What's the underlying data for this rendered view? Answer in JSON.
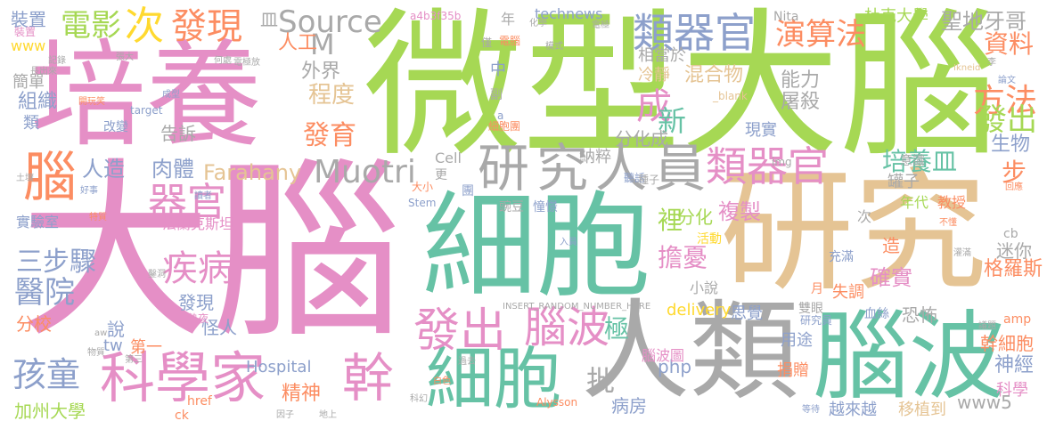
{
  "palette": {
    "pink": "#e58fc6",
    "green": "#a6d854",
    "teal": "#66c2a5",
    "gray": "#a9a9a9",
    "tan": "#e5c494",
    "orange": "#fc8d62",
    "blue": "#8da0cb",
    "yellow": "#ffd92f"
  },
  "words": [
    {
      "text": "大腦",
      "color": "#e58fc6"
    },
    {
      "text": "微型大腦",
      "color": "#a6d854"
    },
    {
      "text": "培養",
      "color": "#e58fc6"
    },
    {
      "text": "研究",
      "color": "#e5c494"
    },
    {
      "text": "細胞",
      "color": "#66c2a5"
    },
    {
      "text": "人類",
      "color": "#a9a9a9"
    },
    {
      "text": "腦波",
      "color": "#66c2a5"
    },
    {
      "text": "研究人員",
      "color": "#a9a9a9"
    },
    {
      "text": "科學家",
      "color": "#e58fc6"
    },
    {
      "text": "細胞",
      "color": "#66c2a5"
    },
    {
      "text": "發出",
      "color": "#e58fc6"
    },
    {
      "text": "腦波",
      "color": "#e58fc6"
    },
    {
      "text": "幹",
      "color": "#e58fc6"
    },
    {
      "text": "類器官",
      "color": "#8da0cb"
    },
    {
      "text": "類器官",
      "color": "#e58fc6"
    },
    {
      "text": "腦",
      "color": "#fc8d62"
    },
    {
      "text": "器官",
      "color": "#e58fc6"
    },
    {
      "text": "Muotri",
      "color": "#a9a9a9"
    },
    {
      "text": "Farahany",
      "color": "#e5c494"
    },
    {
      "text": "Source",
      "color": "#a9a9a9"
    },
    {
      "text": "M",
      "color": "#a9a9a9"
    },
    {
      "text": "發現",
      "color": "#fc8d62"
    },
    {
      "text": "電影",
      "color": "#a6d854"
    },
    {
      "text": "次",
      "color": "#ffd92f"
    },
    {
      "text": "演算法",
      "color": "#fc8d62"
    },
    {
      "text": "疾病",
      "color": "#e58fc6"
    },
    {
      "text": "醫院",
      "color": "#8da0cb"
    },
    {
      "text": "孩童",
      "color": "#8da0cb"
    },
    {
      "text": "三步驟",
      "color": "#8da0cb"
    },
    {
      "text": "發育",
      "color": "#fc8d62"
    },
    {
      "text": "程度",
      "color": "#e5c494"
    },
    {
      "text": "外界",
      "color": "#a9a9a9"
    },
    {
      "text": "人工",
      "color": "#fc8d62"
    },
    {
      "text": "人造",
      "color": "#8da0cb"
    },
    {
      "text": "肉體",
      "color": "#8da0cb"
    },
    {
      "text": "培養皿",
      "color": "#66c2a5"
    },
    {
      "text": "方法",
      "color": "#fc8d62"
    },
    {
      "text": "發出",
      "color": "#a6d854"
    },
    {
      "text": "資料",
      "color": "#fc8d62"
    },
    {
      "text": "步",
      "color": "#fc8d62"
    },
    {
      "text": "生物",
      "color": "#8da0cb"
    },
    {
      "text": "聖地牙哥",
      "color": "#a9a9a9"
    },
    {
      "text": "杜克大學",
      "color": "#a6d854"
    },
    {
      "text": "組織",
      "color": "#8da0cb"
    },
    {
      "text": "裝置",
      "color": "#8da0cb"
    },
    {
      "text": "簡單",
      "color": "#a9a9a9"
    },
    {
      "text": "類",
      "color": "#8da0cb"
    },
    {
      "text": "www",
      "color": "#ffd92f"
    },
    {
      "text": "成",
      "color": "#e58fc6"
    },
    {
      "text": "新",
      "color": "#66c2a5"
    },
    {
      "text": "能力",
      "color": "#a9a9a9"
    },
    {
      "text": "屠殺",
      "color": "#a9a9a9"
    },
    {
      "text": "混合物",
      "color": "#e5c494"
    },
    {
      "text": "冷靜",
      "color": "#e5c494"
    },
    {
      "text": "相當於",
      "color": "#a9a9a9"
    },
    {
      "text": "分化成",
      "color": "#a9a9a9"
    },
    {
      "text": "現實",
      "color": "#8da0cb"
    },
    {
      "text": "納粹",
      "color": "#a9a9a9"
    },
    {
      "text": "裡",
      "color": "#a6d854"
    },
    {
      "text": "分化",
      "color": "#a6d854"
    },
    {
      "text": "複製",
      "color": "#e58fc6"
    },
    {
      "text": "擔憂",
      "color": "#e58fc6"
    },
    {
      "text": "極",
      "color": "#66c2a5"
    },
    {
      "text": "確實",
      "color": "#e58fc6"
    },
    {
      "text": "迷你",
      "color": "#a9a9a9"
    },
    {
      "text": "格羅斯",
      "color": "#fc8d62"
    },
    {
      "text": "失調",
      "color": "#fc8d62"
    },
    {
      "text": "恐怖",
      "color": "#a9a9a9"
    },
    {
      "text": "思覺",
      "color": "#8da0cb"
    },
    {
      "text": "雙眼",
      "color": "#a9a9a9"
    },
    {
      "text": "幹細胞",
      "color": "#fc8d62"
    },
    {
      "text": "神經",
      "color": "#8da0cb"
    },
    {
      "text": "科學",
      "color": "#e58fc6"
    },
    {
      "text": "www5",
      "color": "#a9a9a9"
    },
    {
      "text": "越來越",
      "color": "#8da0cb"
    },
    {
      "text": "移植到",
      "color": "#e5c494"
    },
    {
      "text": "捐贈",
      "color": "#fc8d62"
    },
    {
      "text": "用途",
      "color": "#8da0cb"
    },
    {
      "text": "病房",
      "color": "#8da0cb"
    },
    {
      "text": "精神",
      "color": "#fc8d62"
    },
    {
      "text": "Hospital",
      "color": "#8da0cb"
    },
    {
      "text": "php",
      "color": "#8da0cb"
    },
    {
      "text": "delivery",
      "color": "#ffd92f"
    },
    {
      "text": "小說",
      "color": "#a9a9a9"
    },
    {
      "text": "腦波圖",
      "color": "#e58fc6"
    },
    {
      "text": "批",
      "color": "#a9a9a9"
    },
    {
      "text": "加州大學",
      "color": "#a6d854"
    },
    {
      "text": "分校",
      "color": "#fc8d62"
    },
    {
      "text": "說",
      "color": "#8da0cb"
    },
    {
      "text": "tw",
      "color": "#8da0cb"
    },
    {
      "text": "第一",
      "color": "#fc8d62"
    },
    {
      "text": "怪人",
      "color": "#8da0cb"
    },
    {
      "text": "發現",
      "color": "#8da0cb"
    },
    {
      "text": "實驗室",
      "color": "#8da0cb"
    },
    {
      "text": "法蘭克斯坦",
      "color": "#e58fc6"
    },
    {
      "text": "告訴",
      "color": "#a9a9a9"
    },
    {
      "text": "改變",
      "color": "#8da0cb"
    },
    {
      "text": "皿",
      "color": "#a9a9a9"
    },
    {
      "text": "technews",
      "color": "#8da0cb"
    },
    {
      "text": "年",
      "color": "#a9a9a9"
    },
    {
      "text": "中",
      "color": "#8da0cb"
    },
    {
      "text": "副",
      "color": "#a9a9a9"
    },
    {
      "text": "Cell",
      "color": "#a9a9a9"
    },
    {
      "text": "更",
      "color": "#a9a9a9"
    },
    {
      "text": "團",
      "color": "#8da0cb"
    },
    {
      "text": "Nita",
      "color": "#a9a9a9"
    },
    {
      "text": "a4b3f35b",
      "color": "#e58fc6"
    },
    {
      "text": "罐子",
      "color": "#a9a9a9"
    },
    {
      "text": "年代",
      "color": "#a6d854"
    },
    {
      "text": "教授",
      "color": "#fc8d62"
    },
    {
      "text": "意識",
      "color": "#a9a9a9"
    },
    {
      "text": "造",
      "color": "#fc8d62"
    },
    {
      "text": "次",
      "color": "#a9a9a9"
    },
    {
      "text": "月",
      "color": "#fc8d62"
    },
    {
      "text": "活動",
      "color": "#ffd92f"
    },
    {
      "text": "充滿",
      "color": "#8da0cb"
    },
    {
      "text": "cb",
      "color": "#a9a9a9"
    },
    {
      "text": "amp",
      "color": "#fc8d62"
    },
    {
      "text": "血絲",
      "color": "#8da0cb"
    },
    {
      "text": "研究員",
      "color": "#8da0cb"
    },
    {
      "text": "熱夜",
      "color": "#e58fc6"
    },
    {
      "text": "href",
      "color": "#fc8d62"
    },
    {
      "text": "ck",
      "color": "#fc8d62"
    },
    {
      "text": "INSERT_RANDOM_NUMBER_HERE",
      "color": "#a9a9a9"
    },
    {
      "text": "Alysson",
      "color": "#fc8d62"
    },
    {
      "text": "Stem",
      "color": "#8da0cb"
    },
    {
      "text": "大小",
      "color": "#fc8d62"
    },
    {
      "text": "_blank",
      "color": "#e5c494"
    },
    {
      "text": "target",
      "color": "#8da0cb"
    },
    {
      "text": "img",
      "color": "#a9a9a9"
    },
    {
      "text": "細胞團",
      "color": "#fc8d62"
    },
    {
      "text": "聽話",
      "color": "#8da0cb"
    },
    {
      "text": "豌豆",
      "color": "#a9a9a9"
    },
    {
      "text": "憧憬",
      "color": "#8da0cb"
    },
    {
      "text": "種子",
      "color": "#a9a9a9"
    },
    {
      "text": "電腦",
      "color": "#fc8d62"
    },
    {
      "text": "僅",
      "color": "#a9a9a9"
    },
    {
      "text": "模式",
      "color": "#a9a9a9"
    },
    {
      "text": "化學",
      "color": "#a9a9a9"
    },
    {
      "text": "電極",
      "color": "#a9a9a9"
    },
    {
      "text": "a",
      "color": "#8da0cb"
    },
    {
      "text": "地上",
      "color": "#a9a9a9"
    },
    {
      "text": "因子",
      "color": "#a9a9a9"
    },
    {
      "text": "等待",
      "color": "#8da0cb"
    },
    {
      "text": "科幻",
      "color": "#a9a9a9"
    },
    {
      "text": "白色",
      "color": "#fc8d62"
    },
    {
      "text": "過去",
      "color": "#a9a9a9"
    },
    {
      "text": "入員",
      "color": "#8da0cb"
    },
    {
      "text": "不懂",
      "color": "#fc8d62"
    },
    {
      "text": "aw",
      "color": "#a9a9a9"
    },
    {
      "text": "第三",
      "color": "#a9a9a9"
    },
    {
      "text": "物質",
      "color": "#a9a9a9"
    },
    {
      "text": "記錄",
      "color": "#a9a9a9"
    },
    {
      "text": "長出來",
      "color": "#a9a9a9"
    },
    {
      "text": "裝置",
      "color": "#e58fc6"
    },
    {
      "text": "張大",
      "color": "#a9a9a9"
    },
    {
      "text": "何處",
      "color": "#a9a9a9"
    },
    {
      "text": "電極放",
      "color": "#a9a9a9"
    },
    {
      "text": "李",
      "color": "#a9a9a9"
    },
    {
      "text": "Ikneid",
      "color": "#e5c494"
    },
    {
      "text": "論文",
      "color": "#8da0cb"
    },
    {
      "text": "回應",
      "color": "#fc8d62"
    },
    {
      "text": "灌滿",
      "color": "#a9a9a9"
    },
    {
      "text": "議題",
      "color": "#a9a9a9"
    },
    {
      "text": "鑿洞",
      "color": "#a9a9a9"
    },
    {
      "text": "讀者",
      "color": "#8da0cb"
    },
    {
      "text": "特質",
      "color": "#a9a9a9"
    },
    {
      "text": "好事",
      "color": "#fc8d62"
    },
    {
      "text": "土壤",
      "color": "#8da0cb"
    },
    {
      "text": "開玩笑",
      "color": "#a9a9a9"
    },
    {
      "text": "成型",
      "color": "#fc8d62"
    },
    {
      "text": "呈現",
      "color": "#8da0cb"
    }
  ]
}
